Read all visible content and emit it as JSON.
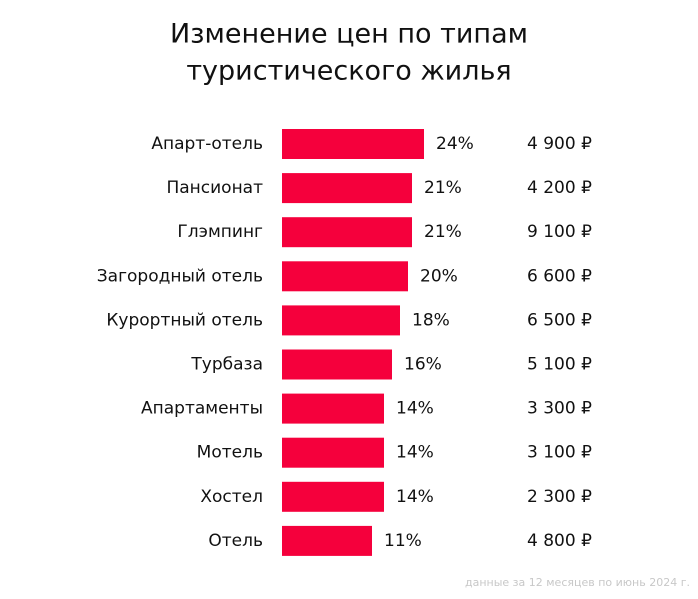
{
  "chart_data": {
    "type": "bar",
    "orientation": "horizontal",
    "title": [
      "Изменение цен по типам",
      "туристического жилья"
    ],
    "categories": [
      "Апарт-отель",
      "Пансионат",
      "Глэмпинг",
      "Загородный отель",
      "Курортный отель",
      "Турбаза",
      "Апартаменты",
      "Мотель",
      "Хостел",
      "Отель"
    ],
    "values": [
      24,
      21,
      21,
      20,
      18,
      16,
      14,
      14,
      14,
      11
    ],
    "value_labels": [
      "24%",
      "21%",
      "21%",
      "20%",
      "18%",
      "16%",
      "14%",
      "14%",
      "14%",
      "11%"
    ],
    "price_labels": [
      "4 900 ₽",
      "4 200 ₽",
      "9 100 ₽",
      "6 600 ₽",
      "6 500 ₽",
      "5 100 ₽",
      "3 300 ₽",
      "3 100 ₽",
      "2 300 ₽",
      "4 800 ₽"
    ],
    "color": "#f5003c",
    "xlim": [
      -11.5,
      24
    ],
    "note": "данные за 12 месяцев по июнь 2024 г."
  }
}
